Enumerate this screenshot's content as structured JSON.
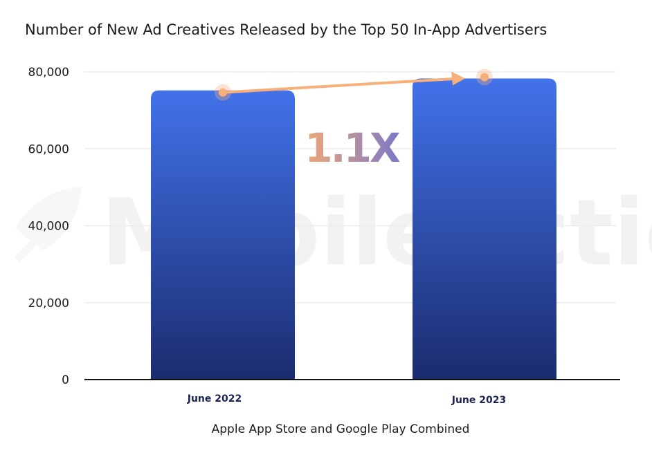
{
  "chart_data": {
    "type": "bar",
    "title": "Number of New Ad Creatives Released by the Top 50 In-App Advertisers",
    "xlabel": "Apple App Store and Google Play Combined",
    "ylabel": "",
    "categories": [
      "June 2022",
      "June 2023"
    ],
    "values": [
      75200,
      78300
    ],
    "ylim": [
      0,
      80000
    ],
    "yticks": [
      0,
      20000,
      40000,
      60000,
      80000
    ],
    "ytick_labels": [
      "0",
      "20,000",
      "40,000",
      "60,000",
      "80,000"
    ],
    "grid": "horizontal",
    "annotation": {
      "text": "1.1X",
      "type": "growth-arrow"
    },
    "watermark": "MobileAction",
    "colors": {
      "bar_top": "#4272ea",
      "bar_bottom": "#1b2c6e",
      "arrow": "#f8b07a",
      "grid": "#ececec",
      "axis": "#111111",
      "multiplier_start": "#f0a878",
      "multiplier_end": "#7a78c8"
    }
  }
}
